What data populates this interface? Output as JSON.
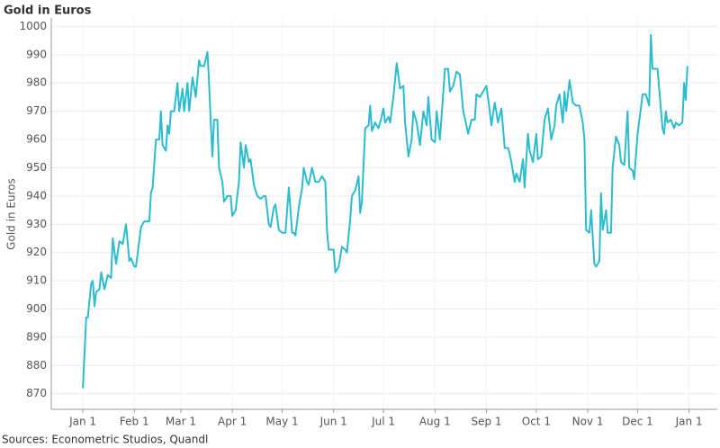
{
  "chart_data": {
    "type": "line",
    "title": "Gold in Euros",
    "y_label": "Gold in Euros",
    "source": "Sources: Econometric Studios, Quandl",
    "xlim": [
      -19,
      382
    ],
    "xticks": [
      {
        "value": 0,
        "label": "Jan 1"
      },
      {
        "value": 31,
        "label": "Feb 1"
      },
      {
        "value": 59,
        "label": "Mar 1"
      },
      {
        "value": 90,
        "label": "Apr 1"
      },
      {
        "value": 120,
        "label": "May 1"
      },
      {
        "value": 151,
        "label": "Jun 1"
      },
      {
        "value": 181,
        "label": "Jul 1"
      },
      {
        "value": 212,
        "label": "Aug 1"
      },
      {
        "value": 243,
        "label": "Sep 1"
      },
      {
        "value": 273,
        "label": "Oct 1"
      },
      {
        "value": 304,
        "label": "Nov 1"
      },
      {
        "value": 334,
        "label": "Dec 1"
      },
      {
        "value": 365,
        "label": "Jan 1"
      }
    ],
    "ylim": [
      864.5,
      1003
    ],
    "yticks": [
      870,
      880,
      890,
      900,
      910,
      920,
      930,
      940,
      950,
      960,
      970,
      980,
      990,
      1000
    ],
    "grid": true,
    "series": [
      {
        "name": "Gold in Euros",
        "color": "#2bbccf",
        "x": [
          0,
          2,
          3,
          5,
          6,
          7,
          8,
          10,
          11,
          13,
          15,
          17,
          18,
          20,
          22,
          24,
          26,
          28,
          29,
          31,
          32,
          35,
          37,
          40,
          41,
          42,
          44,
          46,
          47,
          48,
          50,
          51,
          52,
          53,
          55,
          57,
          58,
          60,
          61,
          63,
          64,
          66,
          68,
          70,
          71,
          73,
          75,
          76,
          77,
          78,
          79,
          81,
          82,
          84,
          85,
          87,
          89,
          90,
          92,
          94,
          95,
          97,
          98,
          100,
          101,
          103,
          105,
          107,
          109,
          110,
          112,
          113,
          115,
          116,
          118,
          120,
          122,
          124,
          126,
          127,
          128,
          130,
          132,
          133,
          135,
          136,
          138,
          140,
          142,
          144,
          146,
          147,
          148,
          151,
          152,
          154,
          156,
          158,
          159,
          161,
          162,
          164,
          166,
          167,
          168,
          170,
          172,
          173,
          174,
          176,
          178,
          179,
          181,
          182,
          184,
          185,
          187,
          189,
          191,
          193,
          194,
          196,
          198,
          199,
          201,
          203,
          205,
          207,
          208,
          210,
          212,
          213,
          215,
          218,
          220,
          221,
          223,
          225,
          227,
          229,
          231,
          232,
          234,
          236,
          237,
          239,
          241,
          243,
          245,
          246,
          248,
          250,
          252,
          254,
          256,
          257,
          258,
          260,
          261,
          263,
          265,
          266,
          268,
          269,
          271,
          273,
          274,
          276,
          278,
          280,
          282,
          284,
          285,
          287,
          289,
          290,
          291,
          293,
          295,
          297,
          299,
          301,
          302,
          303,
          305,
          306,
          308,
          309,
          311,
          312,
          313,
          315,
          316,
          318,
          319,
          321,
          323,
          324,
          326,
          328,
          329,
          331,
          332,
          334,
          336,
          337,
          339,
          341,
          342,
          343,
          344,
          346,
          349,
          350,
          351,
          352,
          354,
          356,
          357,
          359,
          361,
          362,
          363,
          364
        ],
        "values": [
          872,
          897,
          897,
          909,
          910,
          901,
          906,
          907,
          913,
          907,
          912,
          911,
          925,
          916,
          924,
          923,
          930,
          917,
          918,
          915,
          915,
          929,
          931,
          931,
          941,
          943,
          960,
          960,
          970,
          958,
          956,
          965,
          962,
          970,
          970,
          980,
          970,
          978,
          970,
          980,
          970,
          982,
          975,
          988,
          986,
          986,
          991,
          980,
          966,
          954,
          967,
          967,
          950,
          945,
          938,
          940,
          940,
          933,
          935,
          945,
          959,
          950,
          958,
          952,
          953,
          944,
          940,
          939,
          940,
          940,
          930,
          929,
          936,
          937,
          928,
          927,
          927,
          943,
          927,
          927,
          926,
          936,
          943,
          950,
          945,
          944,
          950,
          945,
          945,
          947,
          945,
          928,
          921,
          921,
          913,
          915,
          922,
          921,
          920,
          932,
          940,
          942,
          947,
          934,
          938,
          964,
          965,
          972,
          963,
          966,
          964,
          966,
          971,
          966,
          968,
          966,
          975,
          987,
          978,
          979,
          966,
          954,
          960,
          970,
          966,
          958,
          970,
          965,
          975,
          960,
          959,
          970,
          960,
          985,
          985,
          977,
          979,
          984,
          983,
          970,
          965,
          962,
          967,
          967,
          976,
          975,
          977,
          979,
          970,
          965,
          973,
          966,
          971,
          957,
          957,
          955,
          952,
          945,
          948,
          945,
          953,
          943,
          962,
          956,
          952,
          962,
          953,
          954,
          967,
          971,
          960,
          965,
          972,
          976,
          966,
          977,
          970,
          981,
          973,
          972,
          972,
          966,
          960,
          928,
          927,
          935,
          916,
          915,
          917,
          941,
          928,
          935,
          927,
          927,
          950,
          961,
          958,
          952,
          951,
          970,
          950,
          949,
          946,
          962,
          971,
          976,
          976,
          972,
          997,
          985,
          985,
          985,
          964,
          962,
          970,
          966,
          967,
          964,
          966,
          965,
          966,
          980,
          974,
          986
        ]
      }
    ]
  }
}
